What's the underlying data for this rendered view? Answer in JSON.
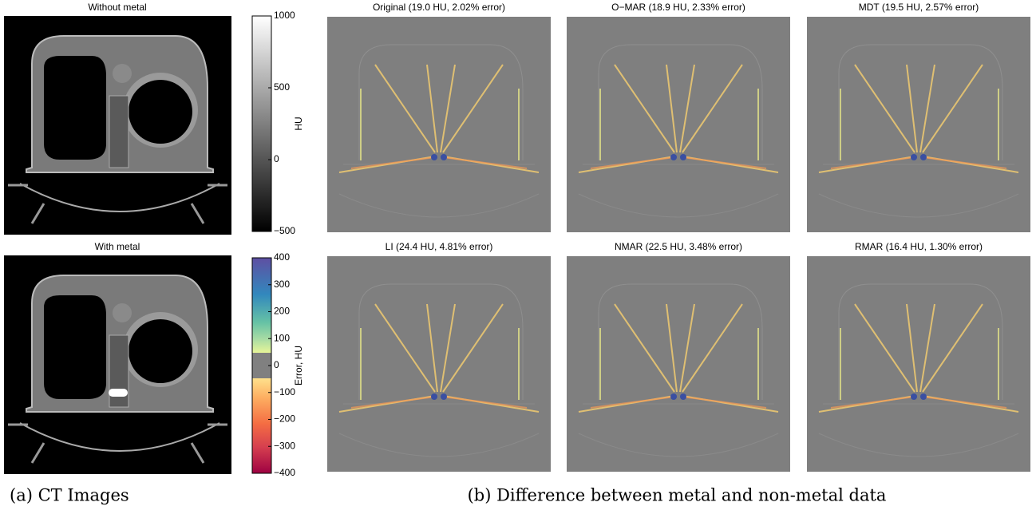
{
  "panels_a": [
    {
      "title": "Without metal"
    },
    {
      "title": "With metal"
    }
  ],
  "colorbars": [
    {
      "label": "HU",
      "lim": [
        -500,
        1000
      ],
      "ticks": [
        {
          "value": -500,
          "label": "−500"
        },
        0,
        500,
        1000
      ]
    },
    {
      "label": "Error, HU",
      "lim": [
        -400,
        400
      ],
      "ticks": [
        {
          "value": -400,
          "label": "−400"
        },
        {
          "value": -300,
          "label": "−300"
        },
        {
          "value": -200,
          "label": "−200"
        },
        {
          "value": -100,
          "label": "−100"
        },
        0,
        100,
        200,
        300,
        400
      ]
    }
  ],
  "panels_b": [
    {
      "title": "Original (19.0 HU, 2.02% error)"
    },
    {
      "title": "O−MAR (18.9 HU, 2.33% error)"
    },
    {
      "title": "MDT (19.5 HU, 2.57% error)"
    },
    {
      "title": "LI (24.4 HU, 4.81% error)"
    },
    {
      "title": "NMAR (22.5 HU, 3.48% error)"
    },
    {
      "title": "RMAR (16.4 HU, 1.30% error)"
    }
  ],
  "captions": [
    "(a) CT Images",
    "(b) Difference between metal and non-metal data"
  ]
}
